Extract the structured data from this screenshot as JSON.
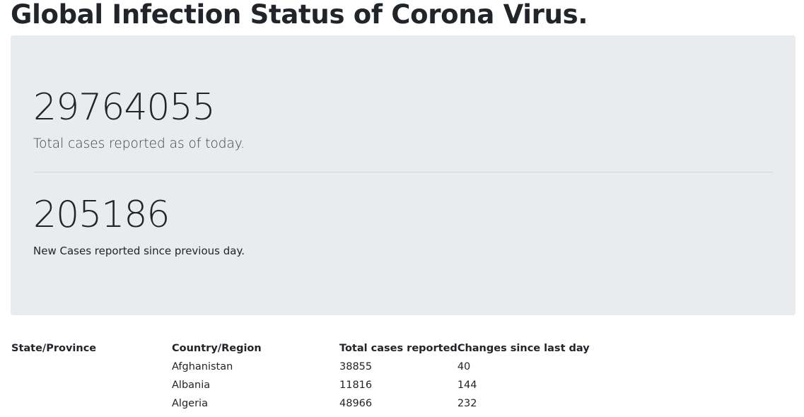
{
  "page": {
    "title": "Global Infection Status of Corona Virus."
  },
  "summary": {
    "total_cases": "29764055",
    "total_label": "Total cases reported as of today.",
    "new_cases": "205186",
    "new_label": "New Cases reported since previous day."
  },
  "table": {
    "headers": [
      "State/Province",
      "Country/Region",
      "Total cases reported",
      "Changes since last day"
    ],
    "rows": [
      {
        "state": "",
        "country": "Afghanistan",
        "total": "38855",
        "change": "40"
      },
      {
        "state": "",
        "country": "Albania",
        "total": "11816",
        "change": "144"
      },
      {
        "state": "",
        "country": "Algeria",
        "total": "48966",
        "change": "232"
      }
    ]
  },
  "colors": {
    "panel_background": "#e9ecef",
    "text": "#212529"
  }
}
